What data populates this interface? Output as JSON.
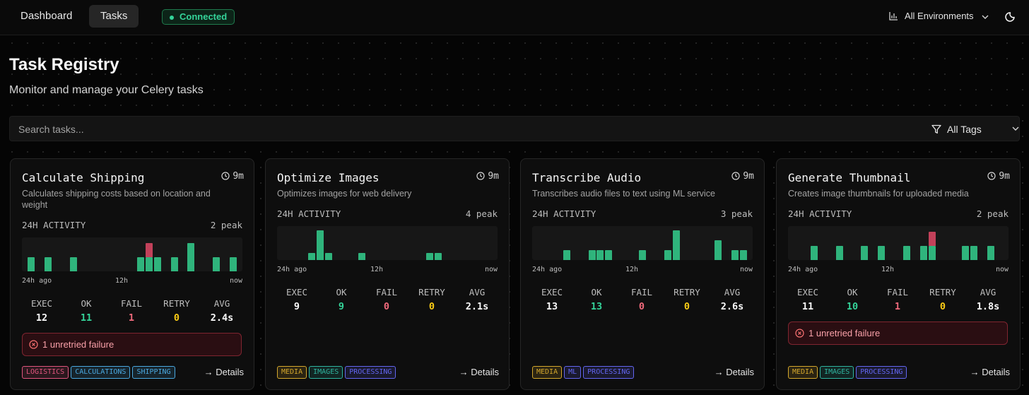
{
  "nav": {
    "dashboard": "Dashboard",
    "tasks": "Tasks",
    "status": "Connected",
    "environment": "All Environments"
  },
  "header": {
    "title": "Task Registry",
    "subtitle": "Monitor and manage your Celery tasks"
  },
  "search": {
    "placeholder": "Search tasks...",
    "tag_filter": "All Tags"
  },
  "labels": {
    "activity": "24H ACTIVITY",
    "axis_start": "24h ago",
    "axis_mid": "12h",
    "axis_end": "now",
    "exec": "EXEC",
    "ok": "OK",
    "fail": "FAIL",
    "retry": "RETRY",
    "avg": "AVG",
    "details": "→ Details"
  },
  "colors": {
    "ok_bar": "#2fb47c",
    "fail_bar": "#c2415a",
    "connected": "#34d399"
  },
  "tasks": [
    {
      "name": "Calculate Shipping",
      "time": "9m",
      "description": "Calculates shipping costs based on location and weight",
      "peak": "2 peak",
      "activity": [
        {
          "ok": 1,
          "fail": 0
        },
        {
          "ok": 0,
          "fail": 0
        },
        {
          "ok": 1,
          "fail": 0
        },
        {
          "ok": 0,
          "fail": 0
        },
        {
          "ok": 0,
          "fail": 0
        },
        {
          "ok": 1,
          "fail": 0
        },
        {
          "ok": 0,
          "fail": 0
        },
        {
          "ok": 0,
          "fail": 0
        },
        {
          "ok": 0,
          "fail": 0
        },
        {
          "ok": 0,
          "fail": 0
        },
        {
          "ok": 0,
          "fail": 0
        },
        {
          "ok": 0,
          "fail": 0
        },
        {
          "ok": 0,
          "fail": 0
        },
        {
          "ok": 1,
          "fail": 0
        },
        {
          "ok": 1,
          "fail": 1
        },
        {
          "ok": 1,
          "fail": 0
        },
        {
          "ok": 0,
          "fail": 0
        },
        {
          "ok": 1,
          "fail": 0
        },
        {
          "ok": 0,
          "fail": 0
        },
        {
          "ok": 2,
          "fail": 0
        },
        {
          "ok": 0,
          "fail": 0
        },
        {
          "ok": 0,
          "fail": 0
        },
        {
          "ok": 1,
          "fail": 0
        },
        {
          "ok": 0,
          "fail": 0
        },
        {
          "ok": 1,
          "fail": 0
        }
      ],
      "stats": {
        "exec": "12",
        "ok": "11",
        "fail": "1",
        "retry": "0",
        "avg": "2.4s"
      },
      "alert": "1 unretried failure",
      "tags": [
        {
          "label": "LOGISTICS",
          "color": "#e0557e"
        },
        {
          "label": "CALCULATIONS",
          "color": "#4aa8e0"
        },
        {
          "label": "SHIPPING",
          "color": "#4aa8e0"
        }
      ]
    },
    {
      "name": "Optimize Images",
      "time": "9m",
      "description": "Optimizes images for web delivery",
      "peak": "4 peak",
      "activity": [
        {
          "ok": 0,
          "fail": 0
        },
        {
          "ok": 0,
          "fail": 0
        },
        {
          "ok": 0,
          "fail": 0
        },
        {
          "ok": 1,
          "fail": 0
        },
        {
          "ok": 4,
          "fail": 0
        },
        {
          "ok": 1,
          "fail": 0
        },
        {
          "ok": 0,
          "fail": 0
        },
        {
          "ok": 0,
          "fail": 0
        },
        {
          "ok": 0,
          "fail": 0
        },
        {
          "ok": 1,
          "fail": 0
        },
        {
          "ok": 0,
          "fail": 0
        },
        {
          "ok": 0,
          "fail": 0
        },
        {
          "ok": 0,
          "fail": 0
        },
        {
          "ok": 0,
          "fail": 0
        },
        {
          "ok": 0,
          "fail": 0
        },
        {
          "ok": 0,
          "fail": 0
        },
        {
          "ok": 0,
          "fail": 0
        },
        {
          "ok": 1,
          "fail": 0
        },
        {
          "ok": 1,
          "fail": 0
        },
        {
          "ok": 0,
          "fail": 0
        },
        {
          "ok": 0,
          "fail": 0
        },
        {
          "ok": 0,
          "fail": 0
        },
        {
          "ok": 0,
          "fail": 0
        },
        {
          "ok": 0,
          "fail": 0
        },
        {
          "ok": 0,
          "fail": 0
        }
      ],
      "stats": {
        "exec": "9",
        "ok": "9",
        "fail": "0",
        "retry": "0",
        "avg": "2.1s"
      },
      "alert": "",
      "tags": [
        {
          "label": "MEDIA",
          "color": "#d4a72c"
        },
        {
          "label": "IMAGES",
          "color": "#2fb4a0"
        },
        {
          "label": "PROCESSING",
          "color": "#6366f1"
        }
      ]
    },
    {
      "name": "Transcribe Audio",
      "time": "9m",
      "description": "Transcribes audio files to text using ML service",
      "peak": "3 peak",
      "activity": [
        {
          "ok": 0,
          "fail": 0
        },
        {
          "ok": 0,
          "fail": 0
        },
        {
          "ok": 0,
          "fail": 0
        },
        {
          "ok": 1,
          "fail": 0
        },
        {
          "ok": 0,
          "fail": 0
        },
        {
          "ok": 0,
          "fail": 0
        },
        {
          "ok": 1,
          "fail": 0
        },
        {
          "ok": 1,
          "fail": 0
        },
        {
          "ok": 1,
          "fail": 0
        },
        {
          "ok": 0,
          "fail": 0
        },
        {
          "ok": 0,
          "fail": 0
        },
        {
          "ok": 0,
          "fail": 0
        },
        {
          "ok": 1,
          "fail": 0
        },
        {
          "ok": 0,
          "fail": 0
        },
        {
          "ok": 0,
          "fail": 0
        },
        {
          "ok": 1,
          "fail": 0
        },
        {
          "ok": 3,
          "fail": 0
        },
        {
          "ok": 0,
          "fail": 0
        },
        {
          "ok": 0,
          "fail": 0
        },
        {
          "ok": 0,
          "fail": 0
        },
        {
          "ok": 0,
          "fail": 0
        },
        {
          "ok": 2,
          "fail": 0
        },
        {
          "ok": 0,
          "fail": 0
        },
        {
          "ok": 1,
          "fail": 0
        },
        {
          "ok": 1,
          "fail": 0
        }
      ],
      "stats": {
        "exec": "13",
        "ok": "13",
        "fail": "0",
        "retry": "0",
        "avg": "2.6s"
      },
      "alert": "",
      "tags": [
        {
          "label": "MEDIA",
          "color": "#d4a72c"
        },
        {
          "label": "ML",
          "color": "#6366f1"
        },
        {
          "label": "PROCESSING",
          "color": "#6366f1"
        }
      ]
    },
    {
      "name": "Generate Thumbnail",
      "time": "9m",
      "description": "Creates image thumbnails for uploaded media",
      "peak": "2 peak",
      "activity": [
        {
          "ok": 0,
          "fail": 0
        },
        {
          "ok": 0,
          "fail": 0
        },
        {
          "ok": 1,
          "fail": 0
        },
        {
          "ok": 0,
          "fail": 0
        },
        {
          "ok": 0,
          "fail": 0
        },
        {
          "ok": 1,
          "fail": 0
        },
        {
          "ok": 0,
          "fail": 0
        },
        {
          "ok": 0,
          "fail": 0
        },
        {
          "ok": 1,
          "fail": 0
        },
        {
          "ok": 0,
          "fail": 0
        },
        {
          "ok": 1,
          "fail": 0
        },
        {
          "ok": 0,
          "fail": 0
        },
        {
          "ok": 0,
          "fail": 0
        },
        {
          "ok": 1,
          "fail": 0
        },
        {
          "ok": 0,
          "fail": 0
        },
        {
          "ok": 1,
          "fail": 0
        },
        {
          "ok": 1,
          "fail": 1
        },
        {
          "ok": 0,
          "fail": 0
        },
        {
          "ok": 0,
          "fail": 0
        },
        {
          "ok": 0,
          "fail": 0
        },
        {
          "ok": 1,
          "fail": 0
        },
        {
          "ok": 1,
          "fail": 0
        },
        {
          "ok": 0,
          "fail": 0
        },
        {
          "ok": 1,
          "fail": 0
        },
        {
          "ok": 0,
          "fail": 0
        }
      ],
      "stats": {
        "exec": "11",
        "ok": "10",
        "fail": "1",
        "retry": "0",
        "avg": "1.8s"
      },
      "alert": "1 unretried failure",
      "tags": [
        {
          "label": "MEDIA",
          "color": "#d4a72c"
        },
        {
          "label": "IMAGES",
          "color": "#2fb4a0"
        },
        {
          "label": "PROCESSING",
          "color": "#6366f1"
        }
      ]
    }
  ]
}
